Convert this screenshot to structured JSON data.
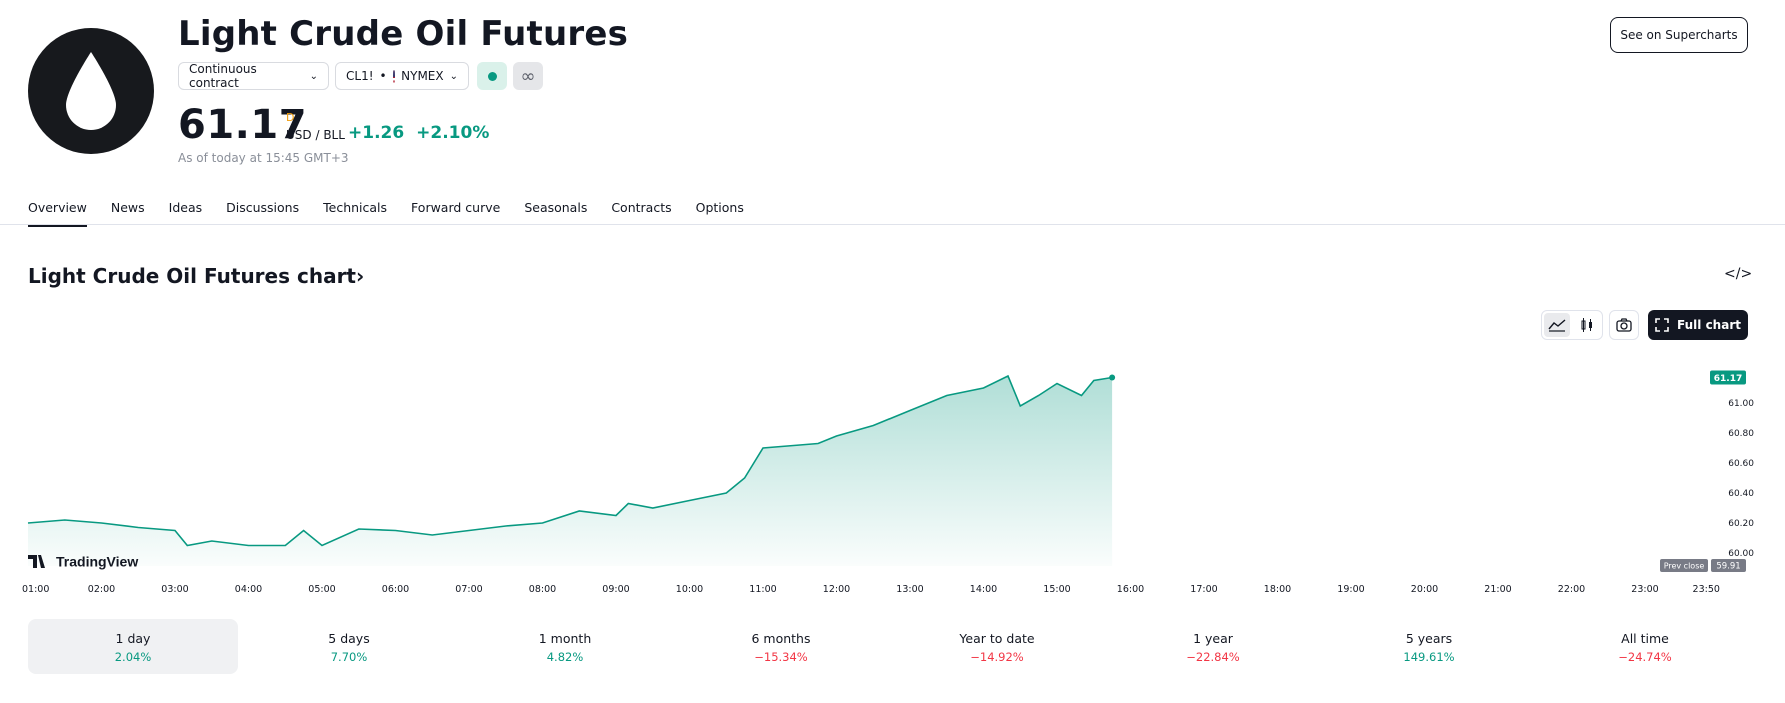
{
  "header": {
    "title": "Light Crude Oil Futures",
    "contract_select": "Continuous contract",
    "symbol": "CL1!",
    "exchange": "NYMEX",
    "see_on_label": "See on Supercharts"
  },
  "quote": {
    "price": "61.17",
    "period_marker": "D",
    "unit": "USD / BLL",
    "change": "+1.26",
    "change_pct": "+2.10%",
    "as_of": "As of today at 15:45 GMT+3"
  },
  "tabs": [
    "Overview",
    "News",
    "Ideas",
    "Discussions",
    "Technicals",
    "Forward curve",
    "Seasonals",
    "Contracts",
    "Options"
  ],
  "chart_section": {
    "title": "Light Crude Oil Futures chart",
    "full_chart_label": "Full chart",
    "watermark": "TradingView"
  },
  "colors": {
    "up": "#089981",
    "down": "#f23645",
    "dark": "#131722"
  },
  "chart_data": {
    "type": "area",
    "x_labels": [
      "01:00",
      "02:00",
      "03:00",
      "04:00",
      "05:00",
      "06:00",
      "07:00",
      "08:00",
      "09:00",
      "10:00",
      "11:00",
      "12:00",
      "13:00",
      "14:00",
      "15:00",
      "16:00",
      "17:00",
      "18:00",
      "19:00",
      "20:00",
      "21:00",
      "22:00",
      "23:00",
      "23:50"
    ],
    "y_ticks": [
      "60.00",
      "60.20",
      "60.40",
      "60.60",
      "60.80",
      "61.00"
    ],
    "ylim": [
      60.0,
      61.25
    ],
    "x": [
      "01:00",
      "01:30",
      "02:00",
      "02:30",
      "03:00",
      "03:10",
      "03:30",
      "04:00",
      "04:30",
      "04:45",
      "05:00",
      "05:30",
      "06:00",
      "06:30",
      "07:00",
      "07:30",
      "08:00",
      "08:30",
      "09:00",
      "09:10",
      "09:30",
      "10:00",
      "10:30",
      "10:45",
      "11:00",
      "11:30",
      "11:45",
      "12:00",
      "12:30",
      "13:00",
      "13:30",
      "14:00",
      "14:20",
      "14:30",
      "14:45",
      "15:00",
      "15:20",
      "15:30",
      "15:45"
    ],
    "values": [
      60.2,
      60.22,
      60.2,
      60.17,
      60.15,
      60.05,
      60.08,
      60.05,
      60.05,
      60.15,
      60.05,
      60.16,
      60.15,
      60.12,
      60.15,
      60.18,
      60.2,
      60.28,
      60.25,
      60.33,
      60.3,
      60.35,
      60.4,
      60.5,
      60.7,
      60.72,
      60.73,
      60.78,
      60.85,
      60.95,
      61.05,
      61.1,
      61.18,
      60.98,
      61.05,
      61.13,
      61.05,
      61.15,
      61.17
    ],
    "last_value": "61.17",
    "prev_close_label": "Prev close",
    "prev_close": "59.91"
  },
  "performance": [
    {
      "label": "1 day",
      "value": "2.04%",
      "dir": "pos"
    },
    {
      "label": "5 days",
      "value": "7.70%",
      "dir": "pos"
    },
    {
      "label": "1 month",
      "value": "4.82%",
      "dir": "pos"
    },
    {
      "label": "6 months",
      "value": "−15.34%",
      "dir": "neg"
    },
    {
      "label": "Year to date",
      "value": "−14.92%",
      "dir": "neg"
    },
    {
      "label": "1 year",
      "value": "−22.84%",
      "dir": "neg"
    },
    {
      "label": "5 years",
      "value": "149.61%",
      "dir": "pos"
    },
    {
      "label": "All time",
      "value": "−24.74%",
      "dir": "neg"
    }
  ]
}
